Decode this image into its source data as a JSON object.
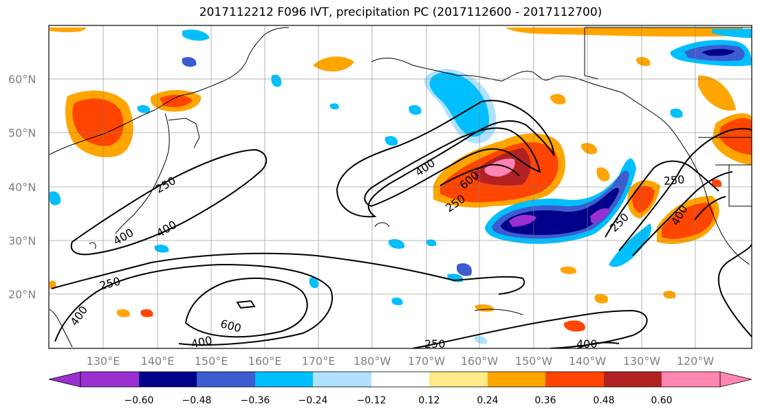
{
  "title": "2017112212 F096 IVT, precipitation PC (2017112600 - 2017112700)",
  "map": {
    "lat_labels": [
      "60°N",
      "50°N",
      "40°N",
      "30°N",
      "20°N"
    ],
    "lon_labels": [
      "130°E",
      "140°E",
      "150°E",
      "160°E",
      "170°E",
      "180°W",
      "170°W",
      "160°W",
      "150°W",
      "140°W",
      "130°W",
      "120°W"
    ],
    "contour_labels": [
      "400",
      "600",
      "250",
      "250",
      "400",
      "250",
      "400",
      "250",
      "400",
      "600",
      "400",
      "250",
      "400",
      "250",
      "400"
    ]
  },
  "colorbar": {
    "tick_labels": [
      "−0.60",
      "−0.48",
      "−0.36",
      "−0.24",
      "−0.12",
      "0.12",
      "0.24",
      "0.36",
      "0.48",
      "0.60"
    ],
    "colors": [
      "#9b30d0",
      "#00008b",
      "#3c5ccf",
      "#00bfff",
      "#b0e2ff",
      "#ffffff",
      "#ffeb88",
      "#ffa500",
      "#ff4500",
      "#b22222",
      "#ff85b3"
    ]
  }
}
